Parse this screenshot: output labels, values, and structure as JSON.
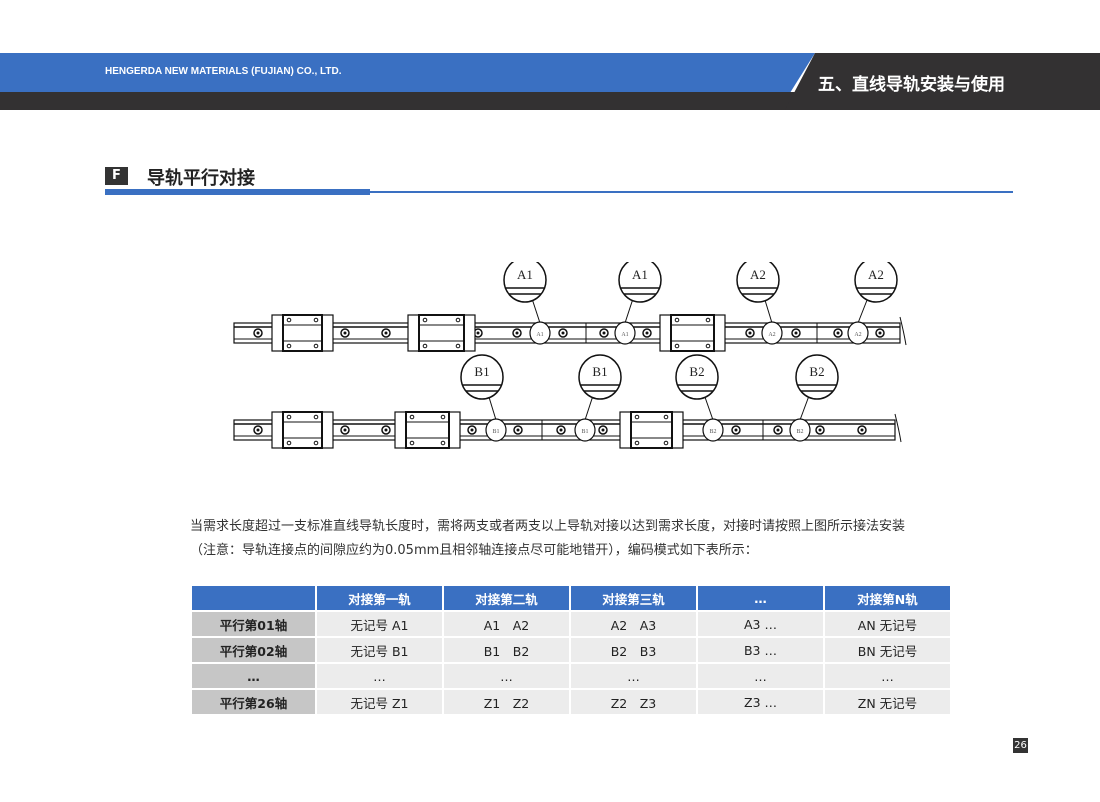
{
  "header": {
    "company": "HENGERDA NEW MATERIALS (FUJIAN) CO., LTD.",
    "chapter": "五、直线导轨安装与使用"
  },
  "section": {
    "letter": "F",
    "title": "导轨平行对接"
  },
  "diagram": {
    "row1_labels": [
      "A1",
      "A1",
      "A2",
      "A2"
    ],
    "row2_labels": [
      "B1",
      "B1",
      "B2",
      "B2"
    ]
  },
  "paragraph": {
    "line1": "当需求长度超过一支标准直线导轨长度时，需将两支或者两支以上导轨对接以达到需求长度，对接时请按照上图所示接法安装",
    "line2": "（注意：导轨连接点的间隙应约为0.05mm且相邻轴连接点尽可能地错开），编码模式如下表所示："
  },
  "table": {
    "headers": [
      "",
      "对接第一轨",
      "对接第二轨",
      "对接第三轨",
      "…",
      "对接第N轨"
    ],
    "rows": [
      [
        "平行第01轴",
        "无记号 A1",
        "A1　A2",
        "A2　A3",
        "A3 …",
        "AN 无记号"
      ],
      [
        "平行第02轴",
        "无记号 B1",
        "B1　B2",
        "B2　B3",
        "B3 …",
        "BN 无记号"
      ],
      [
        "…",
        "…",
        "…",
        "…",
        "…",
        "…"
      ],
      [
        "平行第26轴",
        "无记号 Z1",
        "Z1　Z2",
        "Z2　Z3",
        "Z3 …",
        "ZN 无记号"
      ]
    ]
  },
  "page_number": "26",
  "colors": {
    "accent": "#3a70c2",
    "dark": "#333132"
  }
}
